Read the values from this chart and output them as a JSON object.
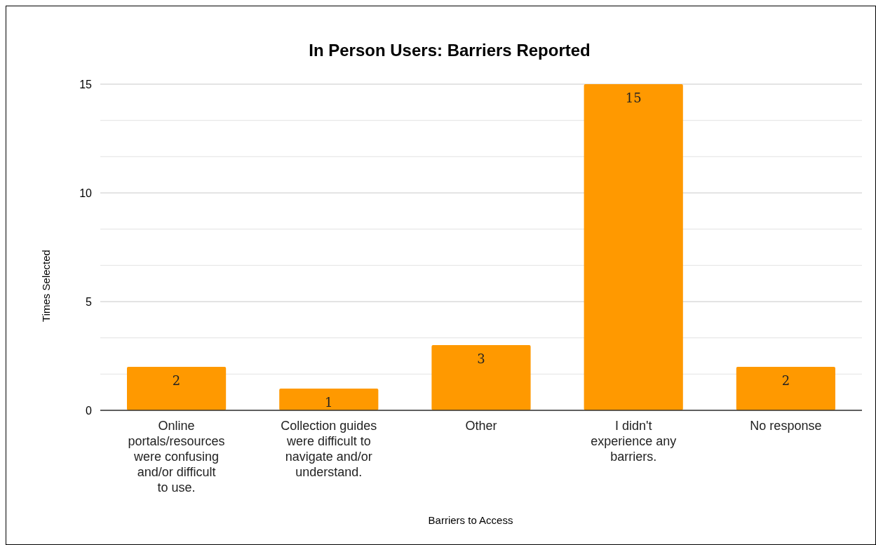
{
  "chart_data": {
    "type": "bar",
    "title": "In Person Users: Barriers Reported",
    "xlabel": "Barriers to Access",
    "ylabel": "Times Selected",
    "categories": [
      "Online portals/resources were confusing and/or difficult to use.",
      "Collection guides were difficult to navigate and/or understand.",
      "Other",
      "I didn't experience any barriers.",
      "No response"
    ],
    "values": [
      2,
      1,
      3,
      15,
      2
    ],
    "color": "#ff9900",
    "ylim": [
      0,
      15
    ],
    "yticks": [
      0,
      {
        "value": 1.667,
        "label": null
      },
      {
        "value": 3.333,
        "label": null
      },
      5,
      {
        "value": 6.667,
        "label": null
      },
      {
        "value": 8.333,
        "label": null
      },
      10,
      {
        "value": 11.667,
        "label": null
      },
      {
        "value": 13.333,
        "label": null
      },
      15
    ],
    "grid": "y",
    "data_labels": true
  }
}
